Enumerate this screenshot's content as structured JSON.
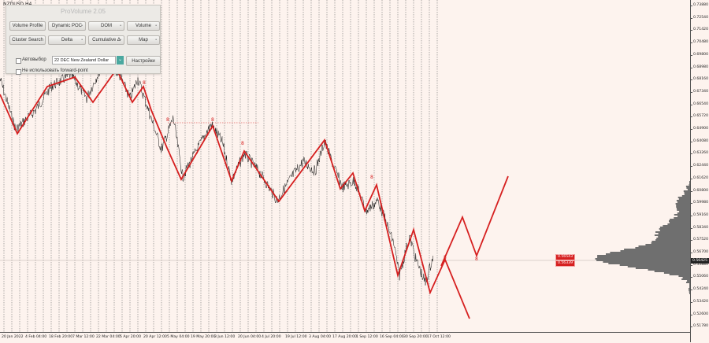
{
  "chart": {
    "symbol": "NZDUSD,H4",
    "current_price": "0.56425",
    "price_ticks": [
      "0.73880",
      "0.72540",
      "0.71420",
      "0.70480",
      "0.69800",
      "0.68980",
      "0.68160",
      "0.67340",
      "0.66540",
      "0.65720",
      "0.64900",
      "0.64080",
      "0.63260",
      "0.62440",
      "0.61620",
      "0.60800",
      "0.59980",
      "0.59160",
      "0.58340",
      "0.57520",
      "0.56700",
      "0.55880",
      "0.55060",
      "0.54240",
      "0.53420",
      "0.52600",
      "0.51780"
    ],
    "time_ticks": [
      "20 Jan 2022",
      "4 Feb 04:00",
      "18 Feb 20:00",
      "7 Mar 12:00",
      "22 Mar 04:00",
      "5 Apr 20:00",
      "20 Apr 12:00",
      "5 May 04:00",
      "19 May 20:00",
      "3 Jun 12:00",
      "20 Jun 04:00",
      "4 Jul 20:00",
      "19 Jul 12:00",
      "3 Aug 04:00",
      "17 Aug 20:00",
      "1 Sep 12:00",
      "16 Sep 04:00",
      "30 Sep 20:00",
      "17 Oct 12:00"
    ],
    "price_labels": [
      "0.56543",
      "0.56339"
    ],
    "wave_labels": [
      "8",
      "8",
      "8",
      "8",
      "8",
      "8",
      "8"
    ],
    "colors": {
      "wave": "#d62020",
      "grid": "#777777",
      "profile": "#6f6f6f",
      "background": "#fdf3ee"
    }
  },
  "panel": {
    "title": "ProVolume 2.05",
    "buttons": [
      {
        "label": "Volume Profile",
        "active": true
      },
      {
        "label": "Dynamic POC",
        "active": false
      },
      {
        "label": "DOM",
        "active": false
      },
      {
        "label": "Volume",
        "active": false
      },
      {
        "label": "Cluster Search",
        "active": false
      },
      {
        "label": "Delta",
        "active": false
      },
      {
        "label": "Cumulative Δ",
        "active": false
      },
      {
        "label": "Map",
        "active": false
      }
    ],
    "auto_select_label": "Автовыбор",
    "symbol_value": "22 DEC New Zealand Dollar",
    "settings_label": "Настройки",
    "forward_point_label": "Не использовать forward-point"
  }
}
